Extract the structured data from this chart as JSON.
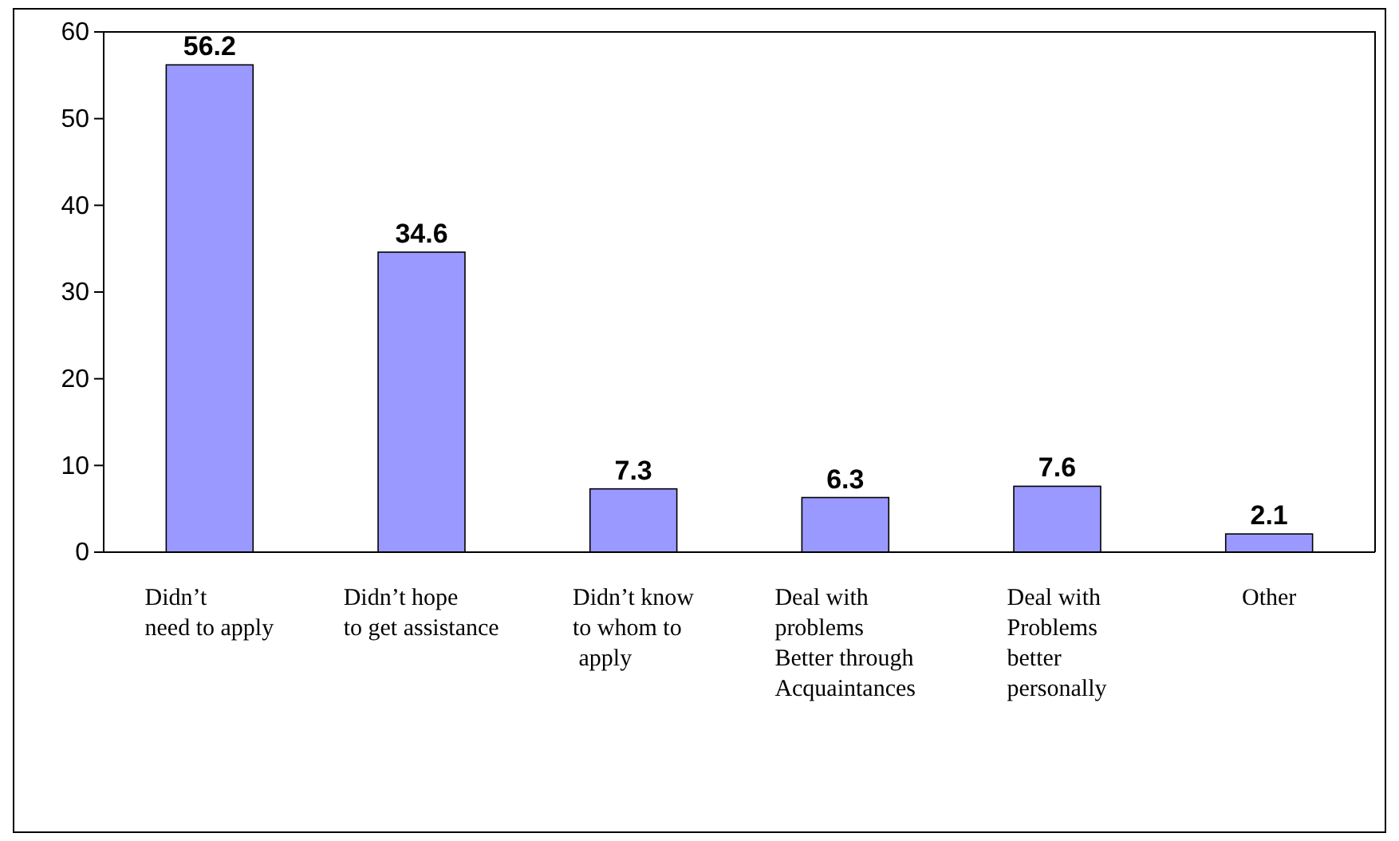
{
  "chart_data": {
    "type": "bar",
    "categories": [
      "Didn’t\nneed to apply",
      "Didn’t hope\nto get assistance",
      "Didn’t know\nto whom to\n apply",
      "Deal with\nproblems\nBetter through\nAcquaintances",
      "Deal with\nProblems\nbetter\npersonally",
      "Other"
    ],
    "values": [
      56.2,
      34.6,
      7.3,
      6.3,
      7.6,
      2.1
    ],
    "color": "#9999ff",
    "ylim": [
      0,
      60
    ],
    "yticks": [
      0,
      10,
      20,
      30,
      40,
      50,
      60
    ],
    "data_labels": true
  }
}
